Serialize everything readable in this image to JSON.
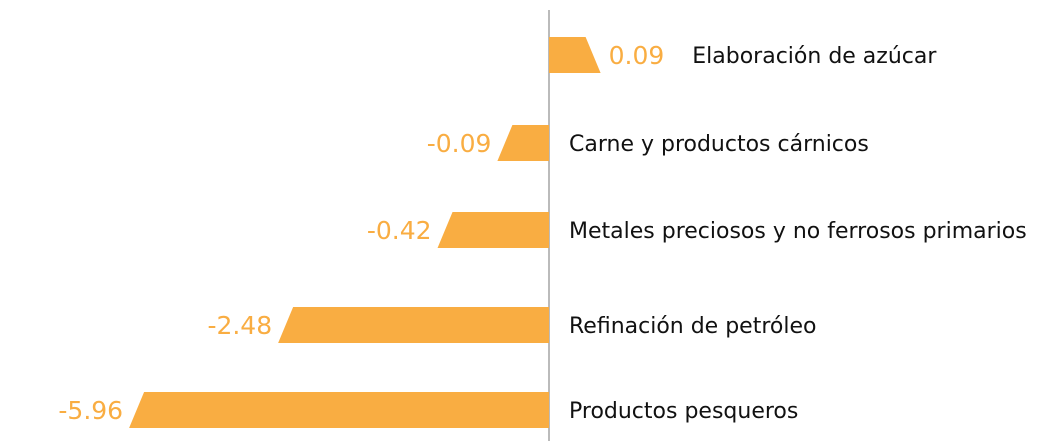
{
  "chart_data": {
    "type": "bar",
    "categories": [
      "Elaboración de azúcar",
      "Carne y productos cárnicos",
      "Metales preciosos y no ferrosos primarios",
      "Refinación de petróleo",
      "Productos pesqueros"
    ],
    "values": [
      0.09,
      -0.09,
      -0.42,
      -2.48,
      -5.96
    ],
    "color": "#f9ad42"
  }
}
